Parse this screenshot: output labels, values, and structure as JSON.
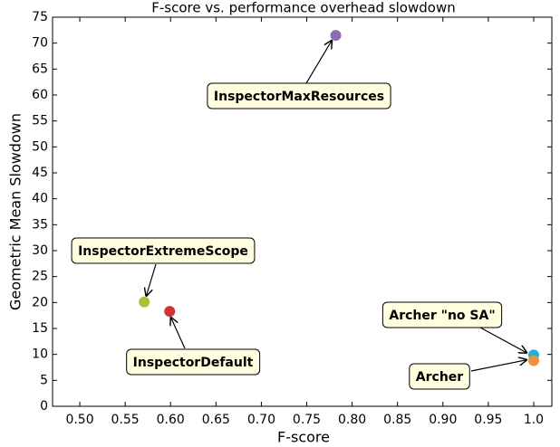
{
  "chart_data": {
    "type": "scatter",
    "title": "F-score vs. performance overhead slowdown",
    "xlabel": "F-score",
    "ylabel": "Geometric Mean Slowdown",
    "points": [
      {
        "label": "InspectorMaxResources",
        "x": 0.782,
        "y": 71.5,
        "color": "#8e6bb0"
      },
      {
        "label": "InspectorExtremeScope",
        "x": 0.571,
        "y": 20.1,
        "color": "#a6c43a"
      },
      {
        "label": "InspectorDefault",
        "x": 0.599,
        "y": 18.3,
        "color": "#d0333a"
      },
      {
        "label": "Archer \"no SA\"",
        "x": 1.0,
        "y": 9.9,
        "color": "#1fb3d3"
      },
      {
        "label": "Archer",
        "x": 1.0,
        "y": 8.8,
        "color": "#f28f3b"
      }
    ],
    "xlim": [
      0.47,
      1.02
    ],
    "xticks": [
      {
        "value": 0.5,
        "label": "0.50"
      },
      {
        "value": 0.55,
        "label": "0.55"
      },
      {
        "value": 0.6,
        "label": "0.60"
      },
      {
        "value": 0.65,
        "label": "0.65"
      },
      {
        "value": 0.7,
        "label": "0.70"
      },
      {
        "value": 0.75,
        "label": "0.75"
      },
      {
        "value": 0.8,
        "label": "0.80"
      },
      {
        "value": 0.85,
        "label": "0.85"
      },
      {
        "value": 0.9,
        "label": "0.90"
      },
      {
        "value": 0.95,
        "label": "0.95"
      },
      {
        "value": 1.0,
        "label": "1.0"
      }
    ],
    "ylim": [
      0,
      75
    ],
    "yticks": [
      0,
      5,
      10,
      15,
      20,
      25,
      30,
      35,
      40,
      45,
      50,
      55,
      60,
      65,
      70,
      75
    ]
  }
}
